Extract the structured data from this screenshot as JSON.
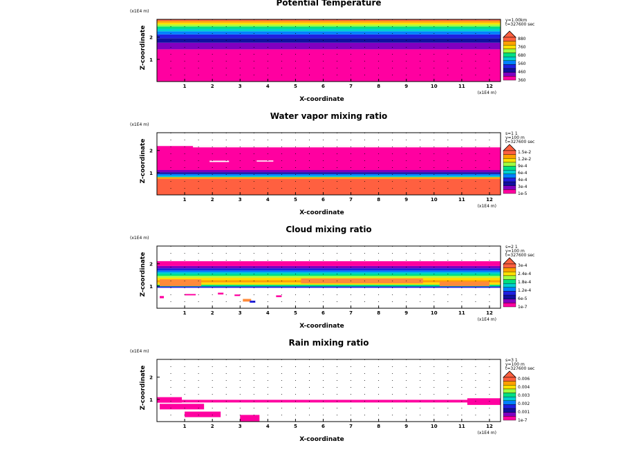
{
  "chart_data": [
    {
      "type": "heatmap",
      "title": "Potential Temperature",
      "xlabel": "X-coordinate",
      "ylabel": "Z-coordinate",
      "x_unit": "(x1E4 m)",
      "z_unit": "(x1E4 m)",
      "xlim": [
        0,
        12.4
      ],
      "zlim": [
        0,
        2.8
      ],
      "xticks": [
        "1",
        "2",
        "3",
        "4",
        "5",
        "6",
        "7",
        "8",
        "9",
        "10",
        "11",
        "12"
      ],
      "zticks": [
        "1",
        "2"
      ],
      "info": [
        "y=1.00km",
        "t=327600 sec"
      ],
      "legend_levels": [
        "880",
        "760",
        "680",
        "560",
        "460",
        "360"
      ],
      "legend_colors": [
        "#ff6040",
        "#ffa000",
        "#ffe000",
        "#a0ff40",
        "#00e080",
        "#00d0d0",
        "#0080ff",
        "#2020e0",
        "#1010a0",
        "#8000c0",
        "#ff00a0"
      ],
      "bands": [
        {
          "z0": 0,
          "z1": 1.45,
          "color": "#ff00a0"
        },
        {
          "z0": 1.45,
          "z1": 1.75,
          "color": "#8000c0"
        },
        {
          "z0": 1.75,
          "z1": 1.95,
          "color": "#1010a0"
        },
        {
          "z0": 1.95,
          "z1": 2.12,
          "color": "#2020e0"
        },
        {
          "z0": 2.12,
          "z1": 2.26,
          "color": "#0080ff"
        },
        {
          "z0": 2.26,
          "z1": 2.38,
          "color": "#00d0d0"
        },
        {
          "z0": 2.38,
          "z1": 2.48,
          "color": "#00e080"
        },
        {
          "z0": 2.48,
          "z1": 2.57,
          "color": "#a0ff40"
        },
        {
          "z0": 2.57,
          "z1": 2.65,
          "color": "#ffe000"
        },
        {
          "z0": 2.65,
          "z1": 2.73,
          "color": "#ffa000"
        },
        {
          "z0": 2.73,
          "z1": 2.8,
          "color": "#ff6040"
        }
      ],
      "patches": []
    },
    {
      "type": "heatmap",
      "title": "Water vapor mixing ratio",
      "xlabel": "X-coordinate",
      "ylabel": "Z-coordinate",
      "x_unit": "(x1E4 m)",
      "z_unit": "(x1E4 m)",
      "xlim": [
        0,
        12.4
      ],
      "zlim": [
        0,
        2.8
      ],
      "xticks": [
        "1",
        "2",
        "3",
        "4",
        "5",
        "6",
        "7",
        "8",
        "9",
        "10",
        "11",
        "12"
      ],
      "zticks": [
        "1",
        "2"
      ],
      "info": [
        "s=1 1",
        "y=100 m",
        "t=327600 sec"
      ],
      "legend_levels": [
        "1.5e-2",
        "1.2e-2",
        "9e-4",
        "6e-4",
        "4e-4",
        "3e-4",
        "1e-5"
      ],
      "legend_colors": [
        "#ff6040",
        "#ffa000",
        "#ffe000",
        "#a0ff40",
        "#00e080",
        "#00d0d0",
        "#0080ff",
        "#2020e0",
        "#1010a0",
        "#8000c0",
        "#ff00a0"
      ],
      "bands": [
        {
          "z0": 0,
          "z1": 0.72,
          "color": "#ff6040"
        },
        {
          "z0": 0.72,
          "z1": 0.8,
          "color": "#ffa000"
        },
        {
          "z0": 0.8,
          "z1": 0.86,
          "color": "#00d0d0"
        },
        {
          "z0": 0.86,
          "z1": 0.94,
          "color": "#0080ff"
        },
        {
          "z0": 0.94,
          "z1": 1.02,
          "color": "#1010a0"
        },
        {
          "z0": 1.02,
          "z1": 1.12,
          "color": "#8000c0"
        },
        {
          "z0": 1.12,
          "z1": 2.2,
          "color": "#ff00a0"
        }
      ],
      "patches": [
        {
          "x0": 1.9,
          "x1": 2.6,
          "z0": 1.48,
          "z1": 1.54,
          "color": "#ffffff"
        },
        {
          "x0": 3.6,
          "x1": 4.2,
          "z0": 1.5,
          "z1": 1.55,
          "color": "#ffffff"
        },
        {
          "x0": 1.3,
          "x1": 12.4,
          "z0": 2.14,
          "z1": 2.2,
          "color": "#ffffff"
        }
      ]
    },
    {
      "type": "heatmap",
      "title": "Cloud mixing ratio",
      "xlabel": "X-coordinate",
      "ylabel": "Z-coordinate",
      "x_unit": "(x1E4 m)",
      "z_unit": "(x1E4 m)",
      "xlim": [
        0,
        12.4
      ],
      "zlim": [
        0,
        2.8
      ],
      "xticks": [
        "1",
        "2",
        "3",
        "4",
        "5",
        "6",
        "7",
        "8",
        "9",
        "10",
        "11",
        "12"
      ],
      "zticks": [
        "1",
        "2"
      ],
      "info": [
        "s=2 1",
        "y=100 m",
        "t=327600 sec"
      ],
      "legend_levels": [
        "3e-4",
        "2.4e-4",
        "1.8e-4",
        "1.2e-4",
        "6e-5",
        "1e-7"
      ],
      "legend_colors": [
        "#ff6040",
        "#ffa000",
        "#ffe000",
        "#a0ff40",
        "#00e080",
        "#00d0d0",
        "#0080ff",
        "#2020e0",
        "#1010a0",
        "#8000c0",
        "#ff00a0"
      ],
      "bands": [
        {
          "z0": 0.92,
          "z1": 0.98,
          "color": "#2020e0"
        },
        {
          "z0": 0.98,
          "z1": 1.06,
          "color": "#00e080"
        },
        {
          "z0": 1.06,
          "z1": 1.16,
          "color": "#ffe000"
        },
        {
          "z0": 1.16,
          "z1": 1.26,
          "color": "#ffa000"
        },
        {
          "z0": 1.26,
          "z1": 1.38,
          "color": "#ffe000"
        },
        {
          "z0": 1.38,
          "z1": 1.46,
          "color": "#a0ff40"
        },
        {
          "z0": 1.46,
          "z1": 1.54,
          "color": "#00e080"
        },
        {
          "z0": 1.54,
          "z1": 1.62,
          "color": "#00d0d0"
        },
        {
          "z0": 1.62,
          "z1": 1.7,
          "color": "#0080ff"
        },
        {
          "z0": 1.7,
          "z1": 1.8,
          "color": "#2020e0"
        },
        {
          "z0": 1.8,
          "z1": 1.9,
          "color": "#8000c0"
        },
        {
          "z0": 1.9,
          "z1": 2.12,
          "color": "#ff00a0"
        }
      ],
      "patches": [
        {
          "x0": 5.2,
          "x1": 9.6,
          "z0": 1.12,
          "z1": 1.34,
          "color": "#ff8a3a"
        },
        {
          "x0": 10.2,
          "x1": 12.0,
          "z0": 1.0,
          "z1": 1.2,
          "color": "#ff8a3a"
        },
        {
          "x0": 0.1,
          "x1": 1.6,
          "z0": 1.0,
          "z1": 1.3,
          "color": "#ff8a3a"
        },
        {
          "x0": 3.1,
          "x1": 3.4,
          "z0": 0.3,
          "z1": 0.42,
          "color": "#ff8a3a"
        },
        {
          "x0": 3.35,
          "x1": 3.55,
          "z0": 0.25,
          "z1": 0.34,
          "color": "#2020e0"
        },
        {
          "x0": 2.2,
          "x1": 2.4,
          "z0": 0.62,
          "z1": 0.7,
          "color": "#ff00a0"
        },
        {
          "x0": 0.1,
          "x1": 0.25,
          "z0": 0.45,
          "z1": 0.55,
          "color": "#ff00a0"
        },
        {
          "x0": 2.8,
          "x1": 3.0,
          "z0": 0.55,
          "z1": 0.62,
          "color": "#ff00a0"
        },
        {
          "x0": 4.3,
          "x1": 4.5,
          "z0": 0.5,
          "z1": 0.58,
          "color": "#ff00a0"
        },
        {
          "x0": 1.0,
          "x1": 1.4,
          "z0": 0.58,
          "z1": 0.64,
          "color": "#ff00a0"
        },
        {
          "x0": 1.4,
          "x1": 12.4,
          "z0": 2.12,
          "z1": 2.2,
          "color": "#ffffff"
        }
      ]
    },
    {
      "type": "heatmap",
      "title": "Rain mixing ratio",
      "xlabel": "X-coordinate",
      "ylabel": "Z-coordinate",
      "x_unit": "(x1E4 m)",
      "z_unit": "(x1E4 m)",
      "xlim": [
        0,
        12.4
      ],
      "zlim": [
        0,
        2.8
      ],
      "xticks": [
        "1",
        "2",
        "3",
        "4",
        "5",
        "6",
        "7",
        "8",
        "9",
        "10",
        "11",
        "12"
      ],
      "zticks": [
        "1",
        "2"
      ],
      "info": [
        "s=3 1",
        "y=100 m",
        "t=327600 sec"
      ],
      "legend_levels": [
        "0.006",
        "0.004",
        "0.003",
        "0.002",
        "0.001",
        "1e-7"
      ],
      "legend_colors": [
        "#ff6040",
        "#ffa000",
        "#ffe000",
        "#a0ff40",
        "#00e080",
        "#00d0d0",
        "#0080ff",
        "#2020e0",
        "#1010a0",
        "#8000c0",
        "#ff00a0"
      ],
      "bands": [],
      "patches": [
        {
          "x0": 0.0,
          "x1": 0.9,
          "z0": 0.85,
          "z1": 1.1,
          "color": "#ff00a0"
        },
        {
          "x0": 0.9,
          "x1": 12.0,
          "z0": 0.86,
          "z1": 0.98,
          "color": "#ff00a0"
        },
        {
          "x0": 11.2,
          "x1": 12.4,
          "z0": 0.75,
          "z1": 1.05,
          "color": "#ff00a0"
        },
        {
          "x0": 0.1,
          "x1": 1.7,
          "z0": 0.55,
          "z1": 0.8,
          "color": "#ff00a0"
        },
        {
          "x0": 1.0,
          "x1": 2.3,
          "z0": 0.2,
          "z1": 0.45,
          "color": "#ff00a0"
        },
        {
          "x0": 3.0,
          "x1": 3.7,
          "z0": 0.0,
          "z1": 0.3,
          "color": "#ff00a0"
        }
      ]
    }
  ]
}
